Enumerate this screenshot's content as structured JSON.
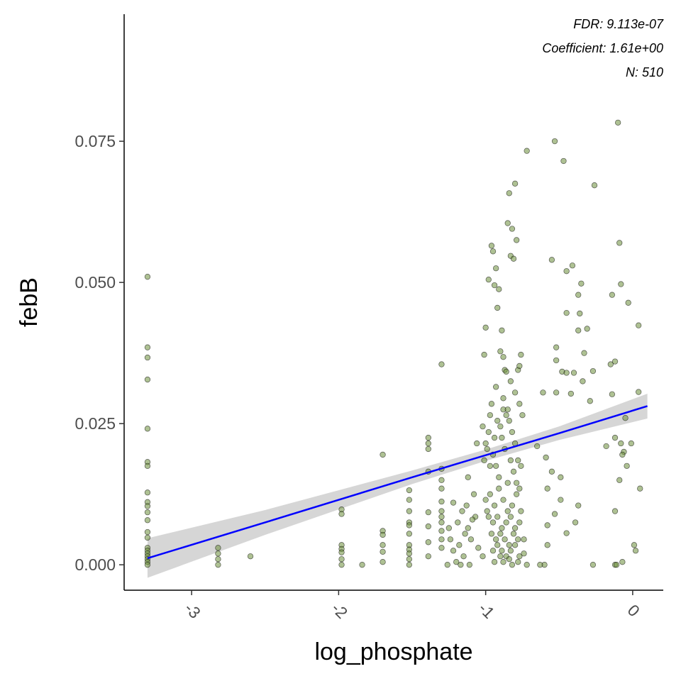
{
  "chart_data": {
    "type": "scatter",
    "x_label": "log_phosphate",
    "y_label": "febB",
    "annotations": [
      "FDR: 9.113e-07",
      "Coefficient: 1.61e+00",
      "N: 510"
    ],
    "xlim": [
      -3.459,
      0.208
    ],
    "ylim": [
      -0.0045,
      0.0975
    ],
    "xticks": [
      -3,
      -2,
      -1,
      0
    ],
    "yticks": [
      {
        "value": 0,
        "label": "0.000"
      },
      {
        "value": 0.025,
        "label": "0.025"
      },
      {
        "value": 0.05,
        "label": "0.050"
      },
      {
        "value": 0.075,
        "label": "0.075"
      }
    ],
    "points": {
      "color": "#6b8e3a",
      "x": [
        -3.3,
        -3.3,
        -3.3,
        -3.3,
        -3.3,
        -3.3,
        -3.3,
        -3.3,
        -3.3,
        -3.3,
        -3.3,
        -3.3,
        -3.3,
        -3.3,
        -3.3,
        -3.3,
        -3.3,
        -3.3,
        -3.3,
        -3.3,
        -3.3,
        -2.82,
        -2.82,
        -2.82,
        -2.82,
        -2.6,
        -1.98,
        -1.98,
        -1.98,
        -1.98,
        -1.98,
        -1.98,
        -1.98,
        -1.84,
        -1.7,
        -1.7,
        -1.7,
        -1.7,
        -1.7,
        -1.7,
        -1.52,
        -1.52,
        -1.52,
        -1.52,
        -1.52,
        -1.52,
        -1.52,
        -1.52,
        -1.52,
        -1.52,
        -1.52,
        -1.39,
        -1.39,
        -1.39,
        -1.39,
        -1.39,
        -1.39,
        -1.39,
        -1.39,
        -1.3,
        -1.3,
        -1.3,
        -1.3,
        -1.3,
        -1.3,
        -1.3,
        -1.3,
        -1.3,
        -1.3,
        -1.3,
        -1.25,
        -1.24,
        -1.22,
        -1.2,
        -1.18,
        -1.16,
        -1.15,
        -1.13,
        -1.12,
        -1.1,
        -1.08,
        -1.07,
        -1.06,
        -1.05,
        -1.22,
        -1.17,
        -1.14,
        -1.11,
        -1.09,
        -1.26,
        -1.19,
        -1.12,
        -1.02,
        -1.01,
        -1.0,
        -0.99,
        -0.98,
        -0.97,
        -0.96,
        -0.95,
        -0.94,
        -0.93,
        -0.92,
        -0.91,
        -0.9,
        -0.89,
        -0.88,
        -0.87,
        -0.86,
        -0.85,
        -0.84,
        -0.83,
        -0.82,
        -0.81,
        -0.8,
        -0.79,
        -0.78,
        -0.77,
        -0.76,
        -1.02,
        -1.0,
        -0.98,
        -0.96,
        -0.94,
        -0.92,
        -0.9,
        -0.88,
        -0.86,
        -0.84,
        -0.82,
        -0.8,
        -0.78,
        -0.76,
        -1.01,
        -0.99,
        -0.97,
        -0.95,
        -0.93,
        -0.91,
        -0.89,
        -0.87,
        -0.85,
        -0.83,
        -0.81,
        -0.79,
        -0.77,
        -1.0,
        -0.97,
        -0.94,
        -0.91,
        -0.88,
        -0.85,
        -0.82,
        -0.79,
        -0.76,
        -0.98,
        -0.95,
        -0.92,
        -0.89,
        -0.86,
        -0.83,
        -0.8,
        -0.77,
        -0.96,
        -0.93,
        -0.9,
        -0.87,
        -0.84,
        -0.81,
        -0.78,
        -0.95,
        -0.92,
        -0.89,
        -0.86,
        -0.83,
        -0.8,
        -0.77,
        -0.74,
        -0.94,
        -0.9,
        -0.88,
        -0.84,
        -0.82,
        -0.78,
        -0.74,
        -0.72,
        -0.93,
        -0.88,
        -0.85,
        -0.83,
        -0.8,
        -0.77,
        -0.75,
        -0.53,
        -0.47,
        -0.72,
        -0.26,
        -0.1,
        -0.09,
        -0.41,
        -0.45,
        -0.55,
        -0.08,
        -0.03,
        -0.35,
        -0.37,
        -0.14,
        -0.45,
        -0.36,
        -0.37,
        -0.31,
        0.04,
        -0.52,
        -0.33,
        -0.48,
        -0.45,
        -0.4,
        -0.27,
        -0.52,
        -0.15,
        -0.12,
        -0.34,
        -0.29,
        -0.42,
        -0.52,
        -0.14,
        0.04,
        -0.61,
        -0.05,
        -0.12,
        -0.18,
        -0.08,
        -0.06,
        -0.07,
        -0.01,
        -0.04,
        -0.09,
        0.05,
        -0.65,
        -0.59,
        -0.55,
        -0.49,
        -0.58,
        -0.49,
        -0.37,
        -0.53,
        -0.39,
        -0.45,
        -0.58,
        -0.6,
        -0.63,
        -0.27,
        -0.12,
        -0.11,
        -0.07,
        0.02,
        0.01,
        -0.12,
        -0.58
      ],
      "y": [
        0.051,
        0.0385,
        0.0367,
        0.0328,
        0.0241,
        0.0182,
        0.0175,
        0.0128,
        0.0111,
        0.0104,
        0.0093,
        0.0079,
        0.0058,
        0.0048,
        0.003,
        0.0025,
        0.002,
        0.0015,
        0.001,
        0.0005,
        0.0,
        0.003,
        0.002,
        0.001,
        0.0,
        0.0015,
        0.0098,
        0.009,
        0.0035,
        0.0028,
        0.0022,
        0.001,
        0.0,
        0.0,
        0.0195,
        0.006,
        0.0053,
        0.0035,
        0.0023,
        0.0005,
        0.0132,
        0.0115,
        0.0095,
        0.0075,
        0.007,
        0.0055,
        0.0035,
        0.0027,
        0.002,
        0.001,
        0.0,
        0.0225,
        0.0215,
        0.0205,
        0.0165,
        0.0093,
        0.0068,
        0.004,
        0.0015,
        0.0355,
        0.017,
        0.015,
        0.0135,
        0.0112,
        0.0095,
        0.0085,
        0.0075,
        0.006,
        0.0045,
        0.003,
        0.0065,
        0.0045,
        0.0025,
        0.0005,
        0.0035,
        0.0095,
        0.0015,
        0.0105,
        0.0065,
        0.0045,
        0.0125,
        0.0085,
        0.0215,
        0.003,
        0.011,
        0.0,
        0.0055,
        0.0,
        0.008,
        0.0,
        0.0075,
        0.0155,
        0.0015,
        0.0372,
        0.042,
        0.0095,
        0.0505,
        0.0265,
        0.0565,
        0.0555,
        0.0495,
        0.0525,
        0.0455,
        0.0488,
        0.0378,
        0.0415,
        0.0368,
        0.0345,
        0.0342,
        0.0605,
        0.0658,
        0.0547,
        0.0595,
        0.0542,
        0.0675,
        0.0575,
        0.0345,
        0.0352,
        0.0372,
        0.0245,
        0.0215,
        0.0235,
        0.0285,
        0.0225,
        0.0255,
        0.0245,
        0.0275,
        0.0265,
        0.0255,
        0.0235,
        0.0215,
        0.0185,
        0.0175,
        0.0185,
        0.0205,
        0.0175,
        0.0195,
        0.0175,
        0.0155,
        0.0225,
        0.0205,
        0.0145,
        0.0185,
        0.0165,
        0.0145,
        0.0135,
        0.0115,
        0.0125,
        0.0105,
        0.0135,
        0.0115,
        0.0095,
        0.0105,
        0.0125,
        0.0095,
        0.0085,
        0.0075,
        0.0085,
        0.0065,
        0.0075,
        0.0085,
        0.0065,
        0.0075,
        0.0055,
        0.0045,
        0.0055,
        0.0045,
        0.0035,
        0.0055,
        0.0045,
        0.0025,
        0.0035,
        0.0025,
        0.0015,
        0.0025,
        0.0035,
        0.0015,
        0.0045,
        0.0005,
        0.0015,
        0.0005,
        0.001,
        0.0,
        0.0005,
        0.002,
        0.0,
        0.0315,
        0.0295,
        0.0275,
        0.0325,
        0.0305,
        0.0285,
        0.0265,
        0.075,
        0.0715,
        0.0733,
        0.0672,
        0.0783,
        0.057,
        0.053,
        0.052,
        0.054,
        0.0497,
        0.0464,
        0.0498,
        0.0478,
        0.0478,
        0.0446,
        0.0445,
        0.0415,
        0.0418,
        0.0424,
        0.0385,
        0.0375,
        0.0342,
        0.034,
        0.034,
        0.0343,
        0.0362,
        0.0355,
        0.036,
        0.0325,
        0.029,
        0.0303,
        0.0305,
        0.0302,
        0.0306,
        0.0305,
        0.026,
        0.0225,
        0.021,
        0.0215,
        0.02,
        0.0195,
        0.0215,
        0.0175,
        0.015,
        0.0135,
        0.021,
        0.019,
        0.0165,
        0.0155,
        0.0135,
        0.0115,
        0.0105,
        0.009,
        0.0075,
        0.0056,
        0.007,
        0.0,
        0.0,
        0.0,
        0.0,
        0.0,
        0.0005,
        0.0025,
        0.0035,
        0.0095,
        0.0035
      ]
    },
    "fit": {
      "color": "#0000ff",
      "band_color": "#cccccc",
      "x": [
        -3.3,
        -2.5,
        -1.5,
        -1.0,
        -0.5,
        0.1
      ],
      "values": [
        0.00116,
        0.0075,
        0.0155,
        0.0194,
        0.0233,
        0.0281
      ],
      "lower": [
        -0.0023,
        0.0053,
        0.0143,
        0.0184,
        0.0221,
        0.0259
      ],
      "upper": [
        0.0047,
        0.0097,
        0.0167,
        0.0204,
        0.0245,
        0.0303
      ]
    }
  }
}
